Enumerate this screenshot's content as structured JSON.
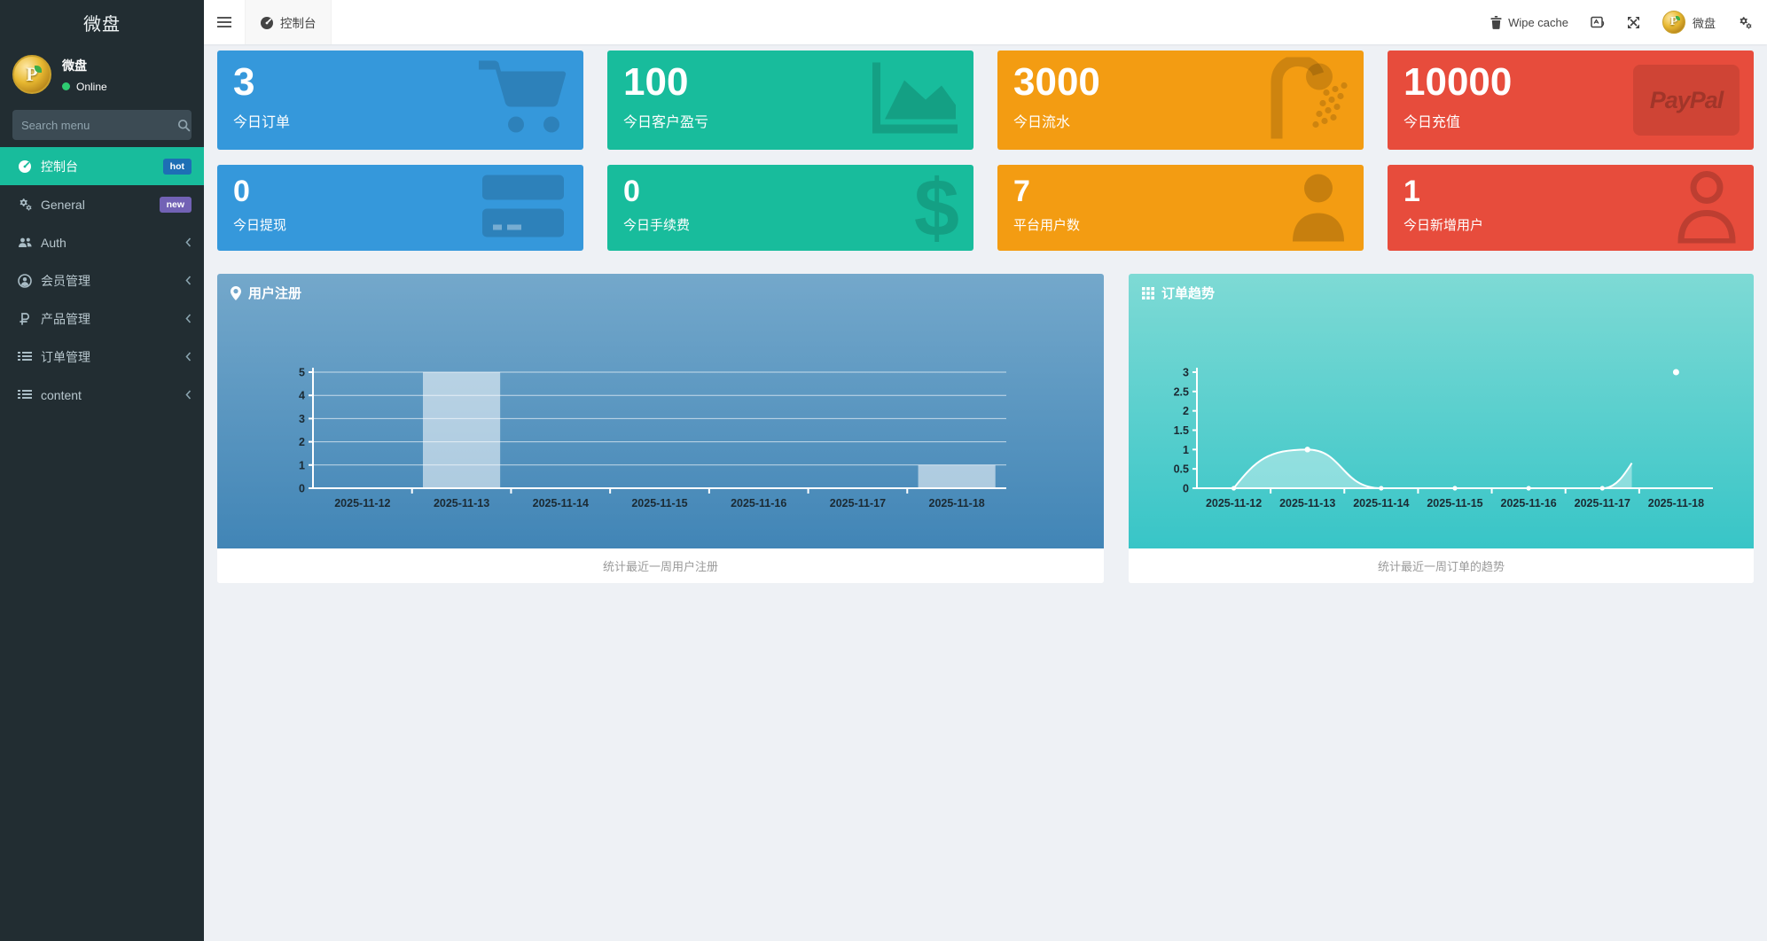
{
  "colors": {
    "sidebar_bg": "#222d32",
    "accent_active": "#18bc9c",
    "badge_hot": "#1d6fb5",
    "badge_new": "#7262b5",
    "online_dot": "#2ecc71",
    "card_blue": "#3598db",
    "card_green": "#18bc9c",
    "card_orange": "#f39c12",
    "card_red": "#e74c3c"
  },
  "sidebar": {
    "brand": "微盘",
    "user": {
      "name": "微盘",
      "status": "Online"
    },
    "search_placeholder": "Search menu",
    "items": [
      {
        "label": "控制台",
        "icon": "dashboard-icon",
        "badge": "hot",
        "active": true
      },
      {
        "label": "General",
        "icon": "cogs-icon",
        "badge": "new",
        "active": false
      },
      {
        "label": "Auth",
        "icon": "users-icon",
        "chevron": true,
        "active": false
      },
      {
        "label": "会员管理",
        "icon": "user-circle-icon",
        "chevron": true,
        "active": false
      },
      {
        "label": "产品管理",
        "icon": "ruble-icon",
        "chevron": true,
        "active": false
      },
      {
        "label": "订单管理",
        "icon": "list-icon",
        "chevron": true,
        "active": false
      },
      {
        "label": "content",
        "icon": "list-icon",
        "chevron": true,
        "active": false
      }
    ]
  },
  "topbar": {
    "tab": "控制台",
    "wipe_cache": "Wipe cache",
    "user_name": "微盘"
  },
  "stats": [
    {
      "value": "3",
      "label": "今日订单",
      "icon": "cart-icon",
      "color": "#3598db"
    },
    {
      "value": "100",
      "label": "今日客户盈亏",
      "icon": "area-chart-icon",
      "color": "#18bc9c"
    },
    {
      "value": "3000",
      "label": "今日流水",
      "icon": "shower-icon",
      "color": "#f39c12"
    },
    {
      "value": "10000",
      "label": "今日充值",
      "icon": "paypal-icon",
      "icon_text": "PayPal",
      "color": "#e74c3c"
    },
    {
      "value": "0",
      "label": "今日提现",
      "icon": "credit-card-icon",
      "color": "#3598db"
    },
    {
      "value": "0",
      "label": "今日手续费",
      "icon": "dollar-icon",
      "icon_text": "$",
      "color": "#18bc9c"
    },
    {
      "value": "7",
      "label": "平台用户数",
      "icon": "user-icon",
      "color": "#f39c12"
    },
    {
      "value": "1",
      "label": "今日新增用户",
      "icon": "user-outline-icon",
      "color": "#e74c3c"
    }
  ],
  "chart_data": [
    {
      "type": "bar",
      "title": "用户注册",
      "title_icon": "map-marker-icon",
      "footer": "统计最近一周用户注册",
      "categories": [
        "2025-11-12",
        "2025-11-13",
        "2025-11-14",
        "2025-11-15",
        "2025-11-16",
        "2025-11-17",
        "2025-11-18"
      ],
      "values": [
        0,
        5,
        0,
        0,
        0,
        0,
        1
      ],
      "ylim": [
        0,
        5
      ],
      "yticks": [
        0,
        1,
        2,
        3,
        4,
        5
      ],
      "grid": true,
      "legend": "none",
      "bg_gradient": [
        "#74a8cb",
        "#4185b6"
      ],
      "bar_color": "rgba(255,255,255,0.55)",
      "axis_color": "#ffffff",
      "label_color": "#1b2a33"
    },
    {
      "type": "area",
      "title": "订单趋势",
      "title_icon": "grid-icon",
      "footer": "统计最近一周订单的趋势",
      "categories": [
        "2025-11-12",
        "2025-11-13",
        "2025-11-14",
        "2025-11-15",
        "2025-11-16",
        "2025-11-17",
        "2025-11-18"
      ],
      "values": [
        0,
        1,
        0,
        0,
        0,
        0,
        3
      ],
      "ylim": [
        0,
        3
      ],
      "yticks": [
        0,
        0.5,
        1,
        1.5,
        2,
        2.5,
        3
      ],
      "grid": false,
      "legend": "none",
      "bg_gradient": [
        "#7edad5",
        "#38c5c7"
      ],
      "line_color": "#ffffff",
      "area_color": "rgba(255,255,255,0.38)",
      "axis_color": "#ffffff",
      "label_color": "#1b2a33",
      "render": {
        "truncated_after_index": 5,
        "truncate_frac": 0.4,
        "truncate_value": 0.65,
        "isolated_last_point": true
      }
    }
  ]
}
